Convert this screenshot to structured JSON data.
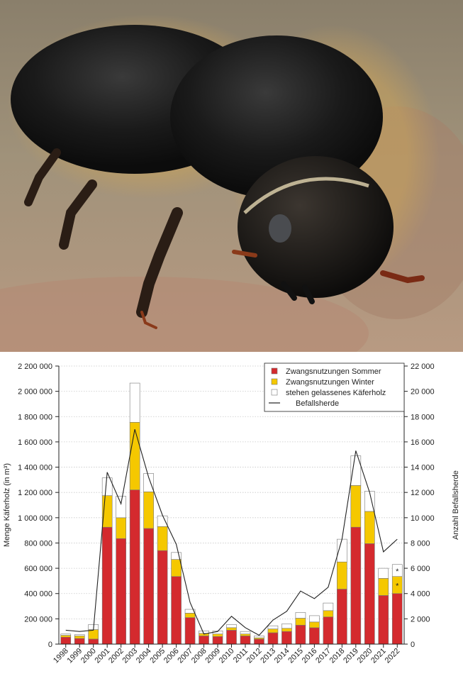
{
  "photo": {
    "subject": "bark beetle close-up photograph"
  },
  "colors": {
    "summer": "#d42a2e",
    "winter": "#f5c800",
    "left_standing": "#ffffff",
    "line": "#222222",
    "bar_stroke": "#777777"
  },
  "chart_data": {
    "type": "bar",
    "stacked": true,
    "ylabel": "Menge Käferholz (in m³)",
    "y2label": "Anzahl Befallsherde",
    "ylim": [
      0,
      2200000
    ],
    "y2lim": [
      0,
      22000
    ],
    "yticks": [
      "0",
      "200 000",
      "400 000",
      "600 000",
      "800 000",
      "1 000 000",
      "1 200 000",
      "1 400 000",
      "1 600 000",
      "1 800 000",
      "2 000 000",
      "2 200 000"
    ],
    "y2ticks": [
      "0",
      "2 000",
      "4 000",
      "6 000",
      "8 000",
      "10 000",
      "12 000",
      "14 000",
      "16 000",
      "18 000",
      "20 000",
      "22 000"
    ],
    "categories": [
      "1998",
      "1999",
      "2000",
      "2001",
      "2002",
      "2003",
      "2004",
      "2005",
      "2006",
      "2007",
      "2008",
      "2009",
      "2010",
      "2011",
      "2012",
      "2013",
      "2014",
      "2015",
      "2016",
      "2017",
      "2018",
      "2019",
      "2020",
      "2021",
      "2022"
    ],
    "series": [
      {
        "name": "Zwangsnutzungen Sommer",
        "values": [
          55000,
          45000,
          40000,
          925000,
          835000,
          1220000,
          915000,
          740000,
          535000,
          210000,
          65000,
          60000,
          110000,
          65000,
          40000,
          90000,
          100000,
          150000,
          130000,
          215000,
          435000,
          925000,
          795000,
          385000,
          400000
        ]
      },
      {
        "name": "Zwangsnutzungen Winter",
        "values": [
          15000,
          20000,
          75000,
          250000,
          165000,
          535000,
          290000,
          190000,
          135000,
          35000,
          20000,
          20000,
          20000,
          15000,
          10000,
          30000,
          25000,
          55000,
          45000,
          50000,
          215000,
          330000,
          255000,
          135000,
          135000
        ]
      },
      {
        "name": "stehen gelassenes Käferholz",
        "values": [
          10000,
          10000,
          40000,
          140000,
          170000,
          310000,
          145000,
          85000,
          55000,
          30000,
          20000,
          25000,
          25000,
          20000,
          15000,
          25000,
          35000,
          45000,
          50000,
          60000,
          180000,
          235000,
          160000,
          80000,
          95000
        ]
      }
    ],
    "line": {
      "name": "Befallsherde",
      "values": [
        1100,
        1000,
        1100,
        13600,
        11100,
        17000,
        13200,
        10200,
        7900,
        3300,
        800,
        1000,
        2200,
        1300,
        700,
        1900,
        2600,
        4200,
        3600,
        4500,
        8300,
        15300,
        12000,
        7300,
        8300
      ]
    },
    "markers": [
      {
        "category": "2022",
        "series": "stehen gelassenes Käferholz",
        "text": "*"
      },
      {
        "category": "2022",
        "series": "Zwangsnutzungen Winter",
        "text": "*"
      }
    ],
    "legend": "top-right",
    "grid": "horizontal-dotted"
  }
}
